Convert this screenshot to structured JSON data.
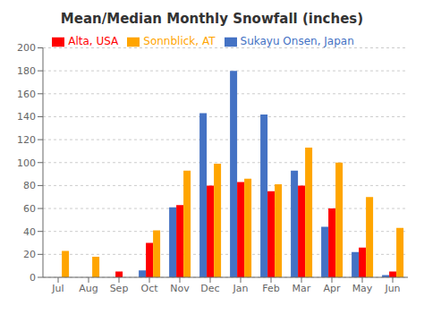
{
  "chart_data": {
    "type": "bar",
    "title": "Mean/Median Monthly Snowfall (inches)",
    "categories": [
      "Jul",
      "Aug",
      "Sep",
      "Oct",
      "Nov",
      "Dec",
      "Jan",
      "Feb",
      "Mar",
      "Apr",
      "May",
      "Jun"
    ],
    "series": [
      {
        "name": "Sukayu Onsen, Japan",
        "color": "#4472C4",
        "values": [
          0,
          0,
          0,
          6,
          61,
          143,
          180,
          142,
          93,
          44,
          22,
          2
        ]
      },
      {
        "name": "Alta, USA",
        "color": "#FF0000",
        "values": [
          0,
          0,
          5,
          30,
          63,
          80,
          83,
          75,
          80,
          60,
          26,
          5
        ]
      },
      {
        "name": "Sonnblick, AT",
        "color": "#FFA500",
        "values": [
          23,
          18,
          0,
          41,
          93,
          99,
          86,
          81,
          113,
          100,
          70,
          43
        ]
      }
    ],
    "ylim": [
      0,
      200
    ],
    "yticks": [
      0,
      20,
      40,
      60,
      80,
      100,
      120,
      140,
      160,
      180,
      200
    ],
    "grid": true,
    "legend": "top"
  }
}
